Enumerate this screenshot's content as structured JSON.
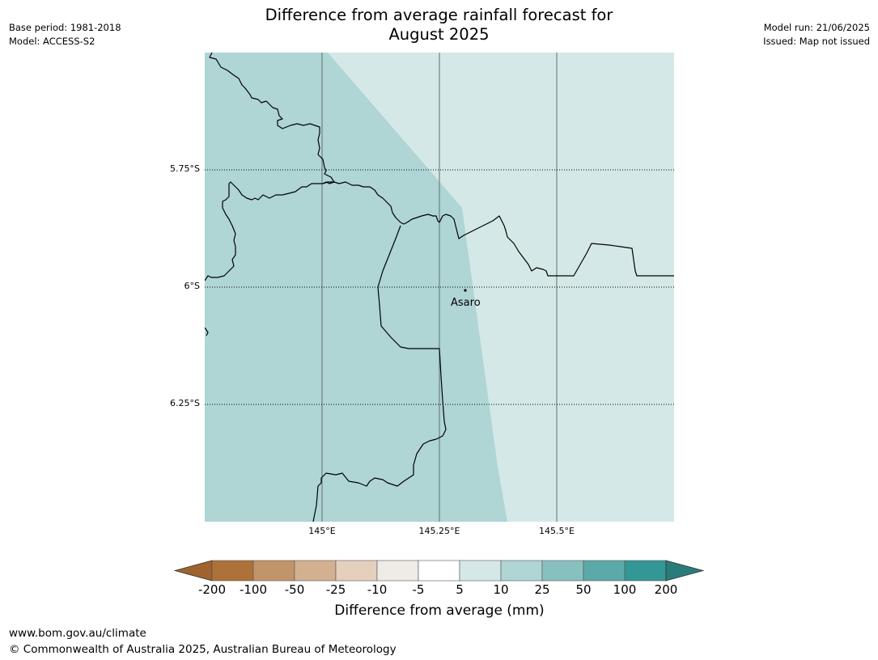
{
  "header": {
    "title_line1": "Difference from average rainfall forecast for",
    "title_line2": "August 2025",
    "base_period": "Base period: 1981-2018",
    "model": "Model: ACCESS-S2",
    "model_run": "Model run: 21/06/2025",
    "issued": "Issued: Map not issued"
  },
  "map": {
    "lat_labels": [
      "5.75°S",
      "6°S",
      "6.25°S"
    ],
    "lon_labels": [
      "145°E",
      "145.25°E",
      "145.5°E"
    ],
    "place_label": "Asaro",
    "colors": {
      "band_5_10": "#d4e8e7",
      "band_10_25": "#afd5d5",
      "boundary": "#000000"
    }
  },
  "legend": {
    "ticks": [
      "-200",
      "-100",
      "-50",
      "-25",
      "-10",
      "-5",
      "5",
      "10",
      "25",
      "50",
      "100",
      "200"
    ],
    "colors": [
      "#a0632f",
      "#ad7239",
      "#c29469",
      "#d3b190",
      "#e4d0bd",
      "#efebe7",
      "#ffffff",
      "#d4e8e7",
      "#afd5d5",
      "#88c0bf",
      "#5ba9a9",
      "#339795",
      "#2a7c7a"
    ],
    "label": "Difference from average (mm)"
  },
  "footer": {
    "url": "www.bom.gov.au/climate",
    "copyright": "© Commonwealth of Australia 2025, Australian Bureau of Meteorology"
  }
}
